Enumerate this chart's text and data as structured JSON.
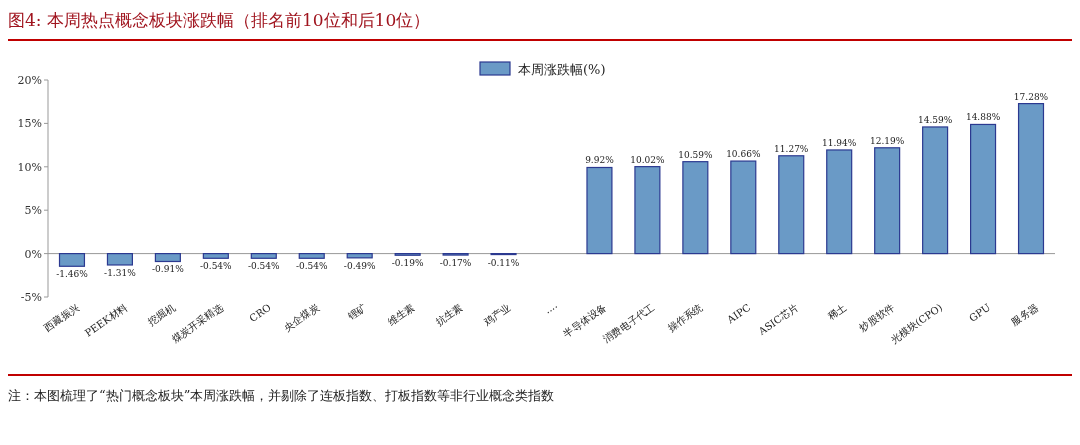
{
  "chart_data": {
    "type": "bar",
    "title": "图4:  本周热点概念板块涨跌幅（排名前10位和后10位）",
    "categories": [
      "西藏振兴",
      "PEEK材料",
      "挖掘机",
      "煤炭开采精选",
      "CRO",
      "央企煤炭",
      "锂矿",
      "维生素",
      "抗生素",
      "鸡产业",
      "····",
      "半导体设备",
      "消费电子代工",
      "操作系统",
      "AIPC",
      "ASIC芯片",
      "稀土",
      "炒股软件",
      "光模块(CPO)",
      "GPU",
      "服务器"
    ],
    "series": [
      {
        "name": "本周涨跌幅(%)",
        "color": "#6a9ac6",
        "values": [
          -1.46,
          -1.31,
          -0.91,
          -0.54,
          -0.54,
          -0.54,
          -0.49,
          -0.19,
          -0.17,
          -0.11,
          null,
          9.92,
          10.02,
          10.59,
          10.66,
          11.27,
          11.94,
          12.19,
          14.59,
          14.88,
          17.28
        ],
        "value_labels": [
          "-1.46%",
          "-1.31%",
          "-0.91%",
          "-0.54%",
          "-0.54%",
          "-0.54%",
          "-0.49%",
          "-0.19%",
          "-0.17%",
          "-0.11%",
          null,
          "9.92%",
          "10.02%",
          "10.59%",
          "10.66%",
          "11.27%",
          "11.94%",
          "12.19%",
          "14.59%",
          "14.88%",
          "17.28%"
        ]
      }
    ],
    "ylim": [
      -5,
      20
    ],
    "yticks": [
      {
        "value": -5,
        "label": "-5%"
      },
      {
        "value": 0,
        "label": "0%"
      },
      {
        "value": 5,
        "label": "5%"
      },
      {
        "value": 10,
        "label": "10%"
      },
      {
        "value": 15,
        "label": "15%"
      },
      {
        "value": 20,
        "label": "20%"
      }
    ],
    "legend": "top",
    "annotations": [
      "注：本图梳理了“热门概念板块”本周涨跌幅，并剔除了连板指数、打板指数等非行业概念类指数"
    ]
  }
}
